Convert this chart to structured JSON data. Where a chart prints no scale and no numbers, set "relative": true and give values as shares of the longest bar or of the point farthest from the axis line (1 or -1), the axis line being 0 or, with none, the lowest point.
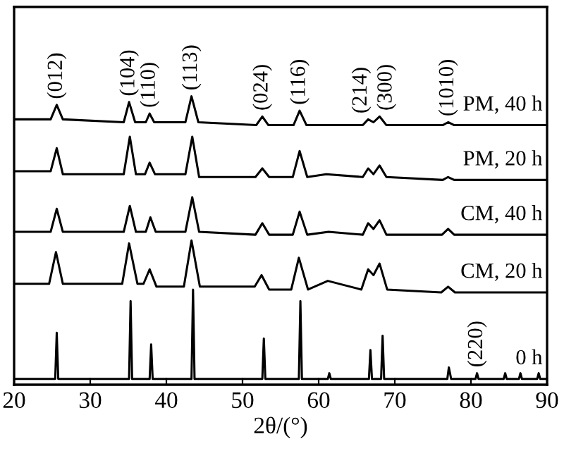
{
  "chart_data": {
    "type": "line",
    "relative": true,
    "xlabel": "2θ/(°)",
    "xlim": [
      20,
      90
    ],
    "xticks": [
      20,
      30,
      40,
      50,
      60,
      70,
      80,
      90
    ],
    "tick_labels": "x",
    "grid": false,
    "legend": false,
    "marker": "none",
    "line_style": "solid",
    "series": [
      {
        "name": "PM, 40 h",
        "color": "#000000",
        "x": [
          20,
          24.8,
          25.6,
          26.4,
          34.4,
          35.1,
          35.9,
          37.3,
          37.8,
          38.4,
          42.5,
          43.3,
          44.2,
          51.8,
          52.6,
          53.4,
          56.7,
          57.5,
          58.4,
          65.8,
          66.5,
          67.2,
          68.0,
          68.9,
          76.3,
          77.0,
          77.8,
          90
        ],
        "values": [
          0.92,
          0.92,
          0.97,
          0.92,
          0.91,
          0.98,
          0.91,
          0.91,
          0.94,
          0.91,
          0.91,
          1.0,
          0.91,
          0.9,
          0.93,
          0.9,
          0.9,
          0.95,
          0.9,
          0.9,
          0.92,
          0.91,
          0.93,
          0.9,
          0.9,
          0.91,
          0.9,
          0.9
        ]
      },
      {
        "name": "PM, 20 h",
        "color": "#000000",
        "x": [
          20,
          24.8,
          25.6,
          26.4,
          34.4,
          35.2,
          36.0,
          37.2,
          37.8,
          38.5,
          42.5,
          43.4,
          44.3,
          51.7,
          52.6,
          53.5,
          56.6,
          57.5,
          58.5,
          61.0,
          65.8,
          66.5,
          67.2,
          68.0,
          68.9,
          76.3,
          77.0,
          77.8,
          90
        ],
        "values": [
          0.74,
          0.74,
          0.82,
          0.73,
          0.73,
          0.86,
          0.73,
          0.73,
          0.77,
          0.73,
          0.73,
          0.86,
          0.72,
          0.72,
          0.75,
          0.72,
          0.72,
          0.81,
          0.72,
          0.73,
          0.72,
          0.75,
          0.73,
          0.76,
          0.72,
          0.71,
          0.72,
          0.71,
          0.71
        ]
      },
      {
        "name": "CM, 40 h",
        "color": "#000000",
        "x": [
          20,
          24.8,
          25.6,
          26.4,
          34.4,
          35.2,
          36.0,
          37.3,
          37.9,
          38.6,
          42.5,
          43.4,
          44.3,
          51.7,
          52.6,
          53.5,
          56.6,
          57.5,
          58.5,
          61.3,
          65.8,
          66.5,
          67.2,
          68.0,
          68.9,
          76.2,
          77.0,
          77.8,
          90
        ],
        "values": [
          0.53,
          0.53,
          0.61,
          0.53,
          0.53,
          0.62,
          0.53,
          0.53,
          0.58,
          0.53,
          0.53,
          0.65,
          0.53,
          0.52,
          0.56,
          0.52,
          0.52,
          0.6,
          0.52,
          0.53,
          0.52,
          0.56,
          0.54,
          0.57,
          0.52,
          0.52,
          0.54,
          0.52,
          0.52
        ]
      },
      {
        "name": "CM, 20 h",
        "color": "#000000",
        "x": [
          20,
          24.6,
          25.5,
          26.4,
          34.2,
          35.1,
          36.2,
          37.0,
          37.8,
          38.7,
          42.3,
          43.3,
          44.4,
          51.6,
          52.5,
          53.5,
          56.4,
          57.4,
          58.6,
          61.2,
          65.6,
          66.5,
          67.2,
          68.0,
          69.0,
          76.1,
          77.0,
          77.9,
          90
        ],
        "values": [
          0.35,
          0.35,
          0.46,
          0.35,
          0.35,
          0.49,
          0.35,
          0.35,
          0.4,
          0.34,
          0.34,
          0.5,
          0.34,
          0.34,
          0.38,
          0.33,
          0.33,
          0.44,
          0.33,
          0.36,
          0.33,
          0.4,
          0.38,
          0.42,
          0.33,
          0.32,
          0.34,
          0.32,
          0.32
        ]
      },
      {
        "name": "0 h",
        "color": "#000000",
        "x": [
          20,
          25.4,
          25.6,
          25.8,
          35.1,
          35.3,
          35.5,
          37.8,
          38.0,
          38.2,
          43.3,
          43.5,
          43.7,
          52.6,
          52.8,
          53.0,
          57.4,
          57.6,
          57.8,
          61.2,
          61.4,
          61.6,
          66.6,
          66.8,
          67.0,
          68.2,
          68.4,
          68.6,
          76.9,
          77.1,
          77.4,
          80.6,
          80.8,
          81.0,
          84.3,
          84.5,
          84.7,
          86.3,
          86.5,
          86.7,
          88.7,
          88.9,
          89.1,
          90
        ],
        "values": [
          0.02,
          0.02,
          0.18,
          0.02,
          0.02,
          0.29,
          0.02,
          0.02,
          0.14,
          0.02,
          0.02,
          0.33,
          0.02,
          0.02,
          0.16,
          0.02,
          0.02,
          0.29,
          0.02,
          0.02,
          0.04,
          0.02,
          0.02,
          0.12,
          0.02,
          0.02,
          0.17,
          0.02,
          0.02,
          0.06,
          0.02,
          0.02,
          0.04,
          0.02,
          0.02,
          0.04,
          0.02,
          0.02,
          0.04,
          0.02,
          0.02,
          0.04,
          0.02,
          0.02
        ]
      }
    ],
    "annotations": [
      {
        "text": "(012)",
        "x": 25.6,
        "y": 0.97
      },
      {
        "text": "(104)",
        "x": 35.1,
        "y": 0.98
      },
      {
        "text": "(110)",
        "x": 37.8,
        "y": 0.94
      },
      {
        "text": "(113)",
        "x": 43.3,
        "y": 1.0
      },
      {
        "text": "(024)",
        "x": 52.6,
        "y": 0.93
      },
      {
        "text": "(116)",
        "x": 57.5,
        "y": 0.95
      },
      {
        "text": "(214)",
        "x": 66.5,
        "y": 0.92
      },
      {
        "text": "(300)",
        "x": 68.0,
        "y": 0.93
      },
      {
        "text": "(1010)",
        "x": 77.0,
        "y": 0.91
      },
      {
        "text": "(220)",
        "x": 80.8,
        "y": 0.04
      }
    ]
  }
}
